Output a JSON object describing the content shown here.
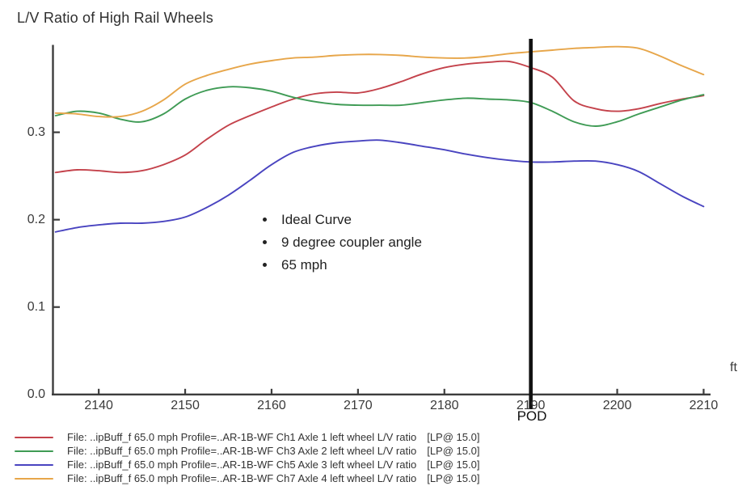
{
  "title": "L/V Ratio of High Rail Wheels",
  "axis_unit": "ft",
  "pod": {
    "label": "POD",
    "x": 2190
  },
  "annotation": {
    "items": [
      "Ideal Curve",
      "9 degree coupler angle",
      "65 mph"
    ]
  },
  "legend": {
    "items": [
      {
        "color": "#c4424b",
        "text": "File: ..ipBuff_f 65.0 mph Profile=..AR-1B-WF Ch1 Axle 1 left wheel L/V ratio",
        "tag": "[LP@ 15.0]"
      },
      {
        "color": "#3f9b55",
        "text": "File: ..ipBuff_f 65.0 mph Profile=..AR-1B-WF Ch3 Axle 2 left wheel L/V ratio",
        "tag": "[LP@ 15.0]"
      },
      {
        "color": "#4944c0",
        "text": "File: ..ipBuff_f 65.0 mph Profile=..AR-1B-WF Ch5 Axle 3 left wheel L/V ratio",
        "tag": "[LP@ 15.0]"
      },
      {
        "color": "#e7a64a",
        "text": "File: ..ipBuff_f 65.0 mph Profile=..AR-1B-WF Ch7 Axle 4 left wheel L/V ratio",
        "tag": "[LP@ 15.0]"
      }
    ]
  },
  "chart_data": {
    "type": "line",
    "title": "L/V Ratio of High Rail Wheels",
    "xlabel": "ft",
    "ylabel": "",
    "xlim": [
      2134.7,
      2210.8
    ],
    "ylim": [
      0,
      0.4
    ],
    "grid": false,
    "legend_position": "bottom-left",
    "axis_color": "#3d3d3d",
    "x_ticks": [
      2140,
      2150,
      2160,
      2170,
      2180,
      2190,
      2200,
      2210
    ],
    "y_ticks": [
      0.0,
      0.1,
      0.2,
      0.3
    ],
    "pod_line": {
      "x": 2190,
      "label": "POD",
      "color": "#111111"
    },
    "x": [
      2135,
      2137.5,
      2140,
      2142.5,
      2145,
      2147.5,
      2150,
      2152.5,
      2155,
      2157.5,
      2160,
      2162.5,
      2165,
      2167.5,
      2170,
      2172.5,
      2175,
      2177.5,
      2180,
      2182.5,
      2185,
      2187.5,
      2190,
      2192.5,
      2195,
      2197.5,
      2200,
      2202.5,
      2205,
      2207.5,
      2210
    ],
    "series": [
      {
        "name": "Ch1 Axle 1 left wheel L/V ratio",
        "color": "#c4424b",
        "values": [
          0.254,
          0.257,
          0.256,
          0.254,
          0.256,
          0.263,
          0.274,
          0.292,
          0.308,
          0.319,
          0.329,
          0.338,
          0.344,
          0.346,
          0.345,
          0.35,
          0.358,
          0.367,
          0.374,
          0.378,
          0.38,
          0.381,
          0.374,
          0.363,
          0.336,
          0.327,
          0.324,
          0.327,
          0.333,
          0.338,
          0.342
        ]
      },
      {
        "name": "Ch3 Axle 2 left wheel L/V ratio",
        "color": "#3f9b55",
        "values": [
          0.319,
          0.324,
          0.322,
          0.315,
          0.312,
          0.321,
          0.338,
          0.348,
          0.352,
          0.351,
          0.347,
          0.34,
          0.335,
          0.332,
          0.331,
          0.331,
          0.331,
          0.334,
          0.337,
          0.339,
          0.338,
          0.337,
          0.334,
          0.324,
          0.312,
          0.307,
          0.312,
          0.321,
          0.329,
          0.337,
          0.343
        ]
      },
      {
        "name": "Ch5 Axle 3 left wheel L/V ratio",
        "color": "#4944c0",
        "values": [
          0.186,
          0.191,
          0.194,
          0.196,
          0.196,
          0.198,
          0.203,
          0.214,
          0.228,
          0.245,
          0.263,
          0.277,
          0.284,
          0.288,
          0.29,
          0.291,
          0.288,
          0.284,
          0.28,
          0.275,
          0.271,
          0.268,
          0.266,
          0.266,
          0.267,
          0.267,
          0.263,
          0.255,
          0.241,
          0.227,
          0.215
        ]
      },
      {
        "name": "Ch7 Axle 4 left wheel L/V ratio",
        "color": "#e7a64a",
        "values": [
          0.322,
          0.321,
          0.318,
          0.318,
          0.324,
          0.337,
          0.355,
          0.365,
          0.372,
          0.378,
          0.382,
          0.385,
          0.386,
          0.388,
          0.389,
          0.389,
          0.388,
          0.386,
          0.385,
          0.385,
          0.387,
          0.39,
          0.392,
          0.394,
          0.396,
          0.397,
          0.398,
          0.396,
          0.387,
          0.376,
          0.366
        ]
      }
    ]
  }
}
